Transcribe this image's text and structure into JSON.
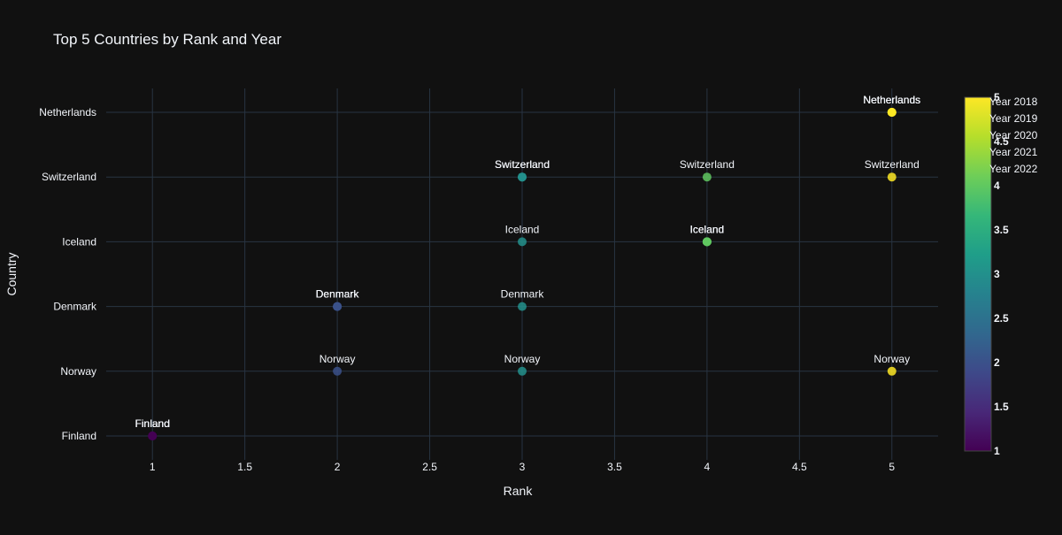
{
  "chart_data": {
    "type": "scatter",
    "title": "Top 5 Countries by Rank and Year",
    "xlabel": "Rank",
    "ylabel": "Country",
    "xlim": [
      0.75,
      5.25
    ],
    "x_ticks": [
      1,
      1.5,
      2,
      2.5,
      3,
      3.5,
      4,
      4.5,
      5
    ],
    "y_categories": [
      "Finland",
      "Norway",
      "Denmark",
      "Iceland",
      "Switzerland",
      "Netherlands"
    ],
    "grid": true,
    "legend_position": "top-right",
    "colorscale": "Viridis",
    "colorbar": {
      "range": [
        1,
        5
      ],
      "ticks": [
        1,
        1.5,
        2,
        2.5,
        3,
        3.5,
        4,
        4.5,
        5
      ]
    },
    "series": [
      {
        "name": "Year 2018",
        "points": [
          {
            "x": 1,
            "y": "Finland",
            "color": 1,
            "label": "Finland"
          },
          {
            "x": 2,
            "y": "Norway",
            "color": 2,
            "label": "Norway"
          },
          {
            "x": 2,
            "y": "Denmark",
            "color": 2,
            "label": "Denmark"
          },
          {
            "x": 4,
            "y": "Iceland",
            "color": 4,
            "label": "Iceland"
          },
          {
            "x": 4,
            "y": "Switzerland",
            "color": 4,
            "label": "Switzerland"
          },
          {
            "x": 5,
            "y": "Netherlands",
            "color": 5,
            "label": "Netherlands"
          }
        ]
      },
      {
        "name": "Year 2019",
        "points": [
          {
            "x": 1,
            "y": "Finland",
            "color": 1,
            "label": "Finland"
          },
          {
            "x": 2,
            "y": "Denmark",
            "color": 2,
            "label": "Denmark"
          },
          {
            "x": 3,
            "y": "Norway",
            "color": 3,
            "label": "Norway"
          },
          {
            "x": 4,
            "y": "Iceland",
            "color": 4,
            "label": "Iceland"
          },
          {
            "x": 5,
            "y": "Netherlands",
            "color": 5,
            "label": "Netherlands"
          }
        ]
      },
      {
        "name": "Year 2020",
        "points": [
          {
            "x": 1,
            "y": "Finland",
            "color": 1,
            "label": "Finland"
          },
          {
            "x": 2,
            "y": "Denmark",
            "color": 2,
            "label": "Denmark"
          },
          {
            "x": 3,
            "y": "Switzerland",
            "color": 3,
            "label": "Switzerland"
          },
          {
            "x": 4,
            "y": "Iceland",
            "color": 4,
            "label": "Iceland"
          },
          {
            "x": 5,
            "y": "Norway",
            "color": 5,
            "label": "Norway"
          }
        ]
      },
      {
        "name": "Year 2021",
        "points": [
          {
            "x": 1,
            "y": "Finland",
            "color": 1,
            "label": "Finland"
          },
          {
            "x": 2,
            "y": "Denmark",
            "color": 2,
            "label": "Denmark"
          },
          {
            "x": 3,
            "y": "Switzerland",
            "color": 3,
            "label": "Switzerland"
          },
          {
            "x": 4,
            "y": "Iceland",
            "color": 4,
            "label": "Iceland"
          },
          {
            "x": 5,
            "y": "Netherlands",
            "color": 5,
            "label": "Netherlands"
          }
        ]
      },
      {
        "name": "Year 2022",
        "points": [
          {
            "x": 1,
            "y": "Finland",
            "color": 1,
            "label": "Finland"
          },
          {
            "x": 3,
            "y": "Iceland",
            "color": 3,
            "label": "Iceland"
          },
          {
            "x": 3,
            "y": "Denmark",
            "color": 3,
            "label": "Denmark"
          },
          {
            "x": 3,
            "y": "Switzerland",
            "color": 3,
            "label": "Switzerland"
          },
          {
            "x": 5,
            "y": "Switzerland",
            "color": 5,
            "label": "Switzerland"
          },
          {
            "x": 5,
            "y": "Netherlands",
            "color": 5,
            "label": "Netherlands"
          }
        ]
      }
    ]
  },
  "colors": {
    "background": "#111111",
    "grid": "#283442",
    "text": "#f2f5fa",
    "colorbar_outline": "#444444"
  }
}
